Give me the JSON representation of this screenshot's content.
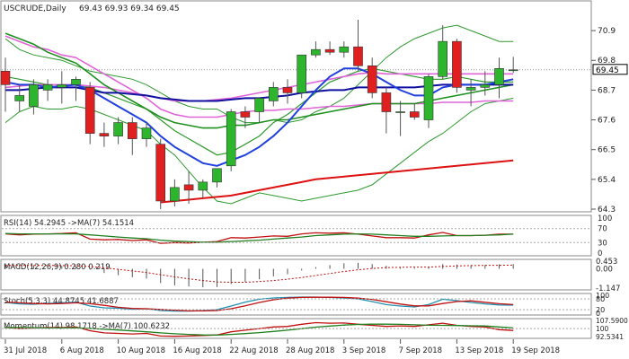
{
  "chart_data": [
    {
      "type": "candlestick",
      "title": "USCRUDE,Daily",
      "ohlc_header": "69.43 69.93 69.34 69.45",
      "last_price_label": "69.45",
      "ylim": [
        64.3,
        71.6
      ],
      "y_ticks": [
        70.9,
        69.8,
        68.7,
        67.6,
        66.5,
        65.4,
        64.3
      ],
      "last_price": 69.45,
      "colors": {
        "up": "#2db52d",
        "down": "#e02020",
        "wick": "#555555"
      },
      "candles": [
        {
          "o": 69.4,
          "h": 69.9,
          "l": 67.9,
          "c": 68.9
        },
        {
          "o": 68.3,
          "h": 68.9,
          "l": 67.9,
          "c": 68.5
        },
        {
          "o": 68.1,
          "h": 69.1,
          "l": 67.8,
          "c": 68.9
        },
        {
          "o": 68.7,
          "h": 69.1,
          "l": 68.3,
          "c": 68.9
        },
        {
          "o": 68.8,
          "h": 69.4,
          "l": 68.2,
          "c": 68.9
        },
        {
          "o": 68.9,
          "h": 69.2,
          "l": 68.3,
          "c": 69.1
        },
        {
          "o": 68.8,
          "h": 69.0,
          "l": 66.7,
          "c": 67.1
        },
        {
          "o": 67.1,
          "h": 67.5,
          "l": 66.6,
          "c": 67.0
        },
        {
          "o": 67.0,
          "h": 67.7,
          "l": 66.7,
          "c": 67.5
        },
        {
          "o": 67.5,
          "h": 67.7,
          "l": 66.3,
          "c": 66.9
        },
        {
          "o": 66.9,
          "h": 67.5,
          "l": 66.6,
          "c": 67.3
        },
        {
          "o": 66.7,
          "h": 66.9,
          "l": 64.3,
          "c": 64.6
        },
        {
          "o": 64.6,
          "h": 65.4,
          "l": 64.4,
          "c": 65.1
        },
        {
          "o": 65.2,
          "h": 65.7,
          "l": 64.5,
          "c": 65.0
        },
        {
          "o": 65.0,
          "h": 65.4,
          "l": 64.7,
          "c": 65.3
        },
        {
          "o": 65.3,
          "h": 65.8,
          "l": 65.1,
          "c": 65.8
        },
        {
          "o": 65.9,
          "h": 68.0,
          "l": 65.7,
          "c": 67.9
        },
        {
          "o": 67.9,
          "h": 68.1,
          "l": 67.3,
          "c": 67.7
        },
        {
          "o": 67.9,
          "h": 68.4,
          "l": 67.5,
          "c": 68.4
        },
        {
          "o": 68.3,
          "h": 69.0,
          "l": 68.1,
          "c": 68.8
        },
        {
          "o": 68.8,
          "h": 69.1,
          "l": 68.2,
          "c": 68.6
        },
        {
          "o": 68.6,
          "h": 70.0,
          "l": 68.4,
          "c": 70.0
        },
        {
          "o": 70.0,
          "h": 70.5,
          "l": 69.9,
          "c": 70.2
        },
        {
          "o": 70.2,
          "h": 70.5,
          "l": 70.0,
          "c": 70.1
        },
        {
          "o": 70.1,
          "h": 70.5,
          "l": 69.9,
          "c": 70.3
        },
        {
          "o": 70.3,
          "h": 71.3,
          "l": 69.4,
          "c": 69.6
        },
        {
          "o": 69.6,
          "h": 69.9,
          "l": 68.4,
          "c": 68.6
        },
        {
          "o": 68.6,
          "h": 68.8,
          "l": 67.1,
          "c": 67.9
        },
        {
          "o": 67.9,
          "h": 68.3,
          "l": 67.0,
          "c": 67.9
        },
        {
          "o": 67.9,
          "h": 68.2,
          "l": 67.6,
          "c": 67.7
        },
        {
          "o": 67.6,
          "h": 69.3,
          "l": 67.3,
          "c": 69.2
        },
        {
          "o": 69.2,
          "h": 71.1,
          "l": 69.1,
          "c": 70.5
        },
        {
          "o": 70.5,
          "h": 70.6,
          "l": 68.6,
          "c": 68.8
        },
        {
          "o": 68.7,
          "h": 69.1,
          "l": 68.1,
          "c": 68.8
        },
        {
          "o": 68.8,
          "h": 69.4,
          "l": 68.5,
          "c": 68.9
        },
        {
          "o": 68.9,
          "h": 69.9,
          "l": 68.4,
          "c": 69.5
        },
        {
          "o": 69.43,
          "h": 69.93,
          "l": 69.34,
          "c": 69.45
        }
      ],
      "overlays": [
        {
          "color": "#2e9a2e",
          "width": 1,
          "values": [
            70.6,
            70.2,
            70.0,
            69.9,
            69.8,
            69.6,
            69.4,
            69.3,
            69.2,
            69.1,
            68.9,
            68.6,
            68.3,
            68.1,
            68.0,
            68.0,
            67.7,
            67.5,
            67.5,
            67.6,
            67.5,
            67.6,
            67.9,
            68.1,
            68.4,
            68.9,
            69.4,
            69.9,
            70.3,
            70.6,
            70.8,
            71.0,
            71.1,
            70.9,
            70.7,
            70.5,
            70.5
          ]
        },
        {
          "color": "#2e9a2e",
          "width": 1,
          "values": [
            67.5,
            67.9,
            68.1,
            68.0,
            68.0,
            68.1,
            68.0,
            67.8,
            67.6,
            67.4,
            67.2,
            66.7,
            66.3,
            65.7,
            65.1,
            64.6,
            64.5,
            64.7,
            64.9,
            64.8,
            64.7,
            64.6,
            64.7,
            64.8,
            64.9,
            65.0,
            65.2,
            65.6,
            66.0,
            66.4,
            66.8,
            67.1,
            67.5,
            67.9,
            68.2,
            68.3,
            68.4
          ]
        },
        {
          "color": "#2e9a2e",
          "width": 1.2,
          "values": [
            69.2,
            69.1,
            69.0,
            68.9,
            68.9,
            68.9,
            68.8,
            68.6,
            68.4,
            68.2,
            68.0,
            67.6,
            67.2,
            66.9,
            66.6,
            66.3,
            66.4,
            66.7,
            67.0,
            67.5,
            67.8,
            68.2,
            68.6,
            69.0,
            69.2,
            69.4,
            69.5,
            69.4,
            69.3,
            69.2,
            69.1,
            69.1,
            69.2,
            69.1,
            69.0,
            69.0,
            69.0
          ]
        },
        {
          "color": "#e064d8",
          "width": 1.6,
          "values": [
            70.7,
            70.5,
            70.3,
            70.2,
            70.0,
            69.9,
            69.6,
            69.3,
            69.0,
            68.7,
            68.4,
            68.0,
            67.8,
            67.7,
            67.7,
            67.7,
            67.8,
            67.9,
            67.95,
            67.95,
            68.0,
            68.0,
            68.05,
            68.1,
            68.1,
            68.15,
            68.2,
            68.2,
            68.2,
            68.2,
            68.2,
            68.25,
            68.25,
            68.25,
            68.3,
            68.3,
            68.3
          ]
        },
        {
          "color": "#e064d8",
          "width": 1.6,
          "values": [
            68.8,
            68.85,
            68.9,
            68.9,
            68.9,
            68.9,
            68.85,
            68.8,
            68.7,
            68.6,
            68.5,
            68.4,
            68.3,
            68.3,
            68.3,
            68.35,
            68.4,
            68.5,
            68.6,
            68.7,
            68.8,
            68.9,
            69.0,
            69.1,
            69.2,
            69.3,
            69.35,
            69.3,
            69.3,
            69.3,
            69.3,
            69.3,
            69.3,
            69.3,
            69.3,
            69.3,
            69.3
          ]
        },
        {
          "color": "#1f8f1f",
          "width": 1.6,
          "values": [
            70.8,
            70.6,
            70.4,
            70.1,
            69.9,
            69.7,
            69.3,
            68.9,
            68.6,
            68.3,
            68.0,
            67.7,
            67.5,
            67.4,
            67.3,
            67.3,
            67.4,
            67.4,
            67.5,
            67.6,
            67.6,
            67.7,
            67.8,
            67.9,
            68.0,
            68.1,
            68.2,
            68.2,
            68.2,
            68.2,
            68.3,
            68.4,
            68.5,
            68.6,
            68.7,
            68.8,
            68.9
          ]
        },
        {
          "color": "#1010a0",
          "width": 2,
          "values": [
            68.7,
            68.7,
            68.75,
            68.8,
            68.8,
            68.8,
            68.7,
            68.6,
            68.6,
            68.55,
            68.5,
            68.4,
            68.35,
            68.3,
            68.3,
            68.3,
            68.35,
            68.4,
            68.4,
            68.45,
            68.5,
            68.6,
            68.65,
            68.7,
            68.7,
            68.8,
            68.8,
            68.8,
            68.8,
            68.8,
            68.85,
            68.9,
            68.9,
            68.9,
            68.9,
            68.9,
            68.9
          ]
        },
        {
          "color": "#2040e0",
          "width": 2,
          "values": [
            69.0,
            68.9,
            68.9,
            68.8,
            68.85,
            68.9,
            68.7,
            68.4,
            68.1,
            67.8,
            67.5,
            67.0,
            66.6,
            66.3,
            66.0,
            65.9,
            66.1,
            66.3,
            66.6,
            67.0,
            67.5,
            68.1,
            68.7,
            69.2,
            69.5,
            69.5,
            69.3,
            69.0,
            68.7,
            68.5,
            68.5,
            68.8,
            68.9,
            68.9,
            68.9,
            69.0,
            69.1
          ]
        },
        {
          "color": "#dd1111",
          "width": 2,
          "values": [
            null,
            null,
            null,
            null,
            null,
            null,
            null,
            null,
            null,
            null,
            null,
            64.55,
            64.6,
            64.65,
            64.7,
            64.75,
            64.8,
            64.9,
            65.0,
            65.1,
            65.2,
            65.3,
            65.4,
            65.45,
            65.5,
            65.55,
            65.6,
            65.65,
            65.7,
            65.75,
            65.8,
            65.85,
            65.9,
            65.95,
            66.0,
            66.05,
            66.1
          ]
        }
      ]
    },
    {
      "type": "line",
      "title": "RSI(14) 54.2945 ->MA(7) 54.1514",
      "ylim": [
        0,
        100
      ],
      "y_ticks": [
        100,
        70,
        30,
        0
      ],
      "series": [
        {
          "color": "#c01010",
          "values": [
            55,
            52,
            54,
            55,
            56,
            58,
            40,
            38,
            39,
            36,
            38,
            28,
            30,
            29,
            31,
            33,
            44,
            43,
            46,
            49,
            48,
            55,
            58,
            57,
            58,
            54,
            49,
            44,
            44,
            43,
            52,
            59,
            50,
            50,
            51,
            54,
            54
          ]
        },
        {
          "color": "#1f7f1f",
          "values": [
            56,
            55,
            55,
            55,
            55,
            55,
            52,
            49,
            46,
            43,
            41,
            37,
            34,
            33,
            31,
            31,
            33,
            35,
            37,
            40,
            43,
            46,
            50,
            52,
            54,
            55,
            54,
            52,
            50,
            48,
            48,
            49,
            50,
            50,
            51,
            52,
            54
          ]
        }
      ]
    },
    {
      "type": "bar",
      "title": "MACD(12,26,9) 0.280 0.219",
      "y_tick_labels": [
        "0.453",
        "0.00",
        "-1.147"
      ],
      "macd": [
        0.3,
        0.25,
        0.22,
        0.2,
        0.18,
        0.16,
        -0.05,
        -0.25,
        -0.38,
        -0.5,
        -0.58,
        -0.85,
        -0.98,
        -1.05,
        -1.1,
        -1.08,
        -0.9,
        -0.78,
        -0.62,
        -0.45,
        -0.32,
        -0.1,
        0.1,
        0.22,
        0.33,
        0.35,
        0.28,
        0.18,
        0.1,
        0.05,
        0.12,
        0.28,
        0.25,
        0.22,
        0.23,
        0.26,
        0.28
      ],
      "signal": [
        0.2,
        0.2,
        0.2,
        0.2,
        0.19,
        0.18,
        0.14,
        0.06,
        -0.03,
        -0.13,
        -0.22,
        -0.35,
        -0.48,
        -0.6,
        -0.7,
        -0.78,
        -0.8,
        -0.8,
        -0.76,
        -0.7,
        -0.62,
        -0.52,
        -0.4,
        -0.28,
        -0.16,
        -0.06,
        0.02,
        0.07,
        0.09,
        0.1,
        0.1,
        0.14,
        0.17,
        0.19,
        0.2,
        0.21,
        0.22
      ]
    },
    {
      "type": "line",
      "title": "Stoch(5,3,3) 44.8745 41.6887",
      "ylim": [
        0,
        100
      ],
      "y_tick_labels": [
        "100",
        "80",
        "20",
        "0"
      ],
      "series": [
        {
          "color": "#2090b0",
          "values": [
            60,
            52,
            50,
            55,
            58,
            62,
            40,
            30,
            28,
            22,
            25,
            15,
            12,
            12,
            14,
            20,
            40,
            62,
            78,
            85,
            88,
            90,
            90,
            88,
            85,
            80,
            65,
            48,
            40,
            35,
            48,
            78,
            70,
            60,
            52,
            46,
            45
          ]
        },
        {
          "color": "#c01010",
          "values": [
            62,
            58,
            54,
            52,
            54,
            58,
            53,
            44,
            33,
            27,
            25,
            21,
            17,
            13,
            13,
            15,
            25,
            41,
            60,
            75,
            84,
            88,
            89,
            89,
            88,
            84,
            77,
            64,
            51,
            41,
            41,
            54,
            65,
            69,
            61,
            53,
            48
          ]
        }
      ]
    },
    {
      "type": "line",
      "title": "Momentum(14) 98.1718 ->MA(7) 100.6232",
      "y_tick_labels": [
        "107.5900",
        "100",
        "92.5341"
      ],
      "ylim": [
        92.5341,
        107.59
      ],
      "series": [
        {
          "color": "#c01010",
          "values": [
            101,
            100,
            100.5,
            101,
            101,
            101.5,
            98,
            96,
            95.5,
            95,
            95.5,
            93,
            92.8,
            93,
            93.5,
            94,
            97,
            98.5,
            100,
            101.5,
            102,
            104,
            105.5,
            105,
            105.2,
            104,
            103,
            102,
            102.5,
            102,
            103.5,
            105,
            103,
            102,
            101.5,
            99,
            98.2
          ]
        },
        {
          "color": "#1f7f1f",
          "values": [
            101,
            101,
            100.8,
            100.6,
            100.6,
            100.8,
            100.1,
            99.4,
            98.6,
            97.8,
            97.0,
            96.0,
            95.1,
            94.5,
            94.0,
            93.9,
            94.5,
            95.3,
            96.2,
            97.3,
            98.5,
            99.9,
            101.3,
            102.3,
            103.2,
            103.8,
            104.1,
            104.1,
            103.9,
            103.5,
            103.1,
            103.0,
            102.8,
            102.6,
            102.4,
            101.5,
            100.6
          ]
        }
      ]
    }
  ],
  "x_axis": {
    "labels": [
      "31 Jul 2018",
      "6 Aug 2018",
      "10 Aug 2018",
      "16 Aug 2018",
      "22 Aug 2018",
      "28 Aug 2018",
      "3 Sep 2018",
      "7 Sep 2018",
      "13 Sep 2018",
      "19 Sep 2018"
    ],
    "label_bar_index": [
      0,
      4,
      8,
      12,
      16,
      20,
      24,
      28,
      32,
      36
    ]
  }
}
